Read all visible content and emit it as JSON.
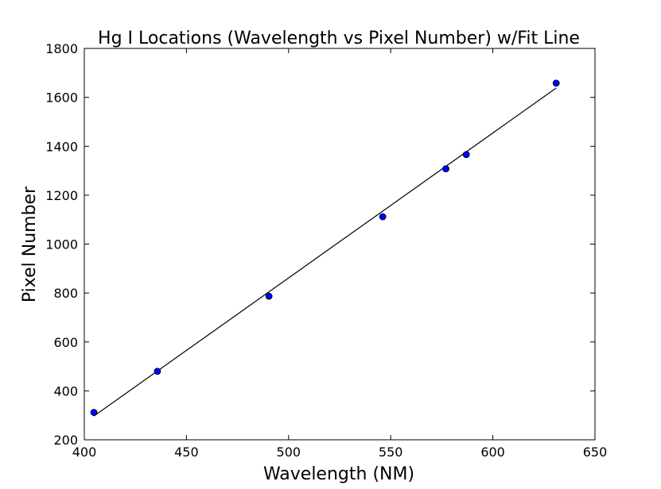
{
  "chart_data": {
    "type": "scatter",
    "title": "Hg I Locations (Wavelength vs Pixel Number) w/Fit Line",
    "xlabel": "Wavelength (NM)",
    "ylabel": "Pixel Number",
    "xlim": [
      400,
      650
    ],
    "ylim": [
      200,
      1800
    ],
    "xticks": [
      400,
      450,
      500,
      550,
      600,
      650
    ],
    "yticks": [
      200,
      400,
      600,
      800,
      1000,
      1200,
      1400,
      1600,
      1800
    ],
    "grid": false,
    "legend": "none",
    "points": {
      "color": "#0000ff",
      "x": [
        404.7,
        435.8,
        490.4,
        546.1,
        577.0,
        587.0,
        631.0
      ],
      "y": [
        312,
        480,
        787,
        1112,
        1308,
        1366,
        1658
      ]
    },
    "fit_line": {
      "color": "#000000",
      "x": [
        404.7,
        631.0
      ],
      "y": [
        297,
        1638
      ]
    }
  }
}
